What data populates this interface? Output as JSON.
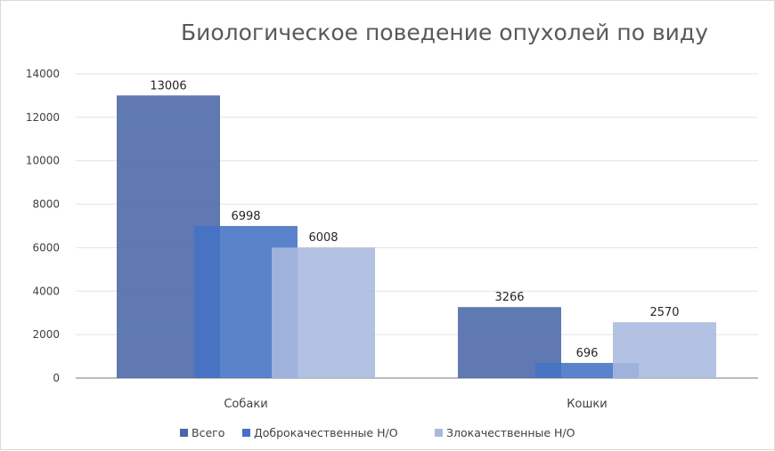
{
  "chart_data": {
    "type": "bar",
    "title": "Биологическое поведение опухолей по виду",
    "categories": [
      "Собаки",
      "Кошки"
    ],
    "series": [
      {
        "name": "Всего",
        "values": [
          13006,
          3266
        ],
        "color": "#4a67a8"
      },
      {
        "name": "Доброкачественные Н/О",
        "values": [
          6998,
          696
        ],
        "color": "#4472c4"
      },
      {
        "name": "Злокачественные Н/О",
        "values": [
          6008,
          2570
        ],
        "color": "#a9b8de"
      }
    ],
    "y_ticks": [
      "0",
      "2000",
      "4000",
      "6000",
      "8000",
      "10000",
      "12000",
      "14000"
    ],
    "ylim": [
      0,
      14000
    ],
    "data_labels": [
      [
        "13006",
        "3266"
      ],
      [
        "6998",
        "696"
      ],
      [
        "6008",
        "2570"
      ]
    ],
    "grid": true,
    "legend_position": "bottom",
    "xlabel": "",
    "ylabel": ""
  }
}
